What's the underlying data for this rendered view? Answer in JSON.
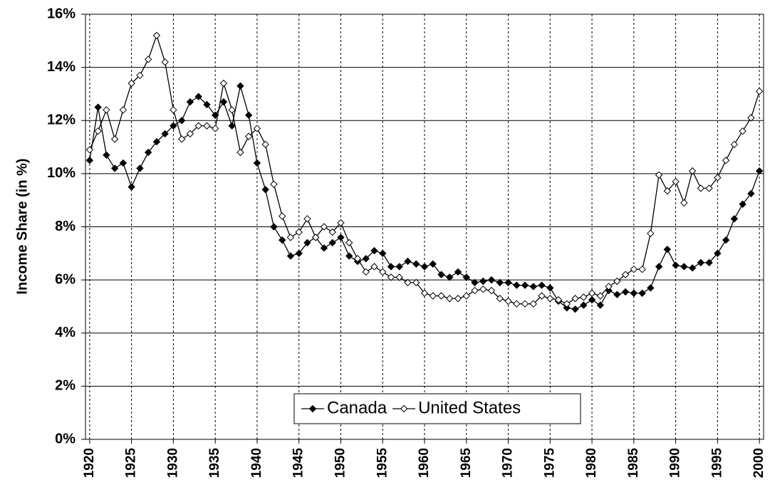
{
  "chart_data": {
    "type": "line",
    "y_label": "Income Share (in %)",
    "x": [
      1920,
      1921,
      1922,
      1923,
      1924,
      1925,
      1926,
      1927,
      1928,
      1929,
      1930,
      1931,
      1932,
      1933,
      1934,
      1935,
      1936,
      1937,
      1938,
      1939,
      1940,
      1941,
      1942,
      1943,
      1944,
      1945,
      1946,
      1947,
      1948,
      1949,
      1950,
      1951,
      1952,
      1953,
      1954,
      1955,
      1956,
      1957,
      1958,
      1959,
      1960,
      1961,
      1962,
      1963,
      1964,
      1965,
      1966,
      1967,
      1968,
      1969,
      1970,
      1971,
      1972,
      1973,
      1974,
      1975,
      1976,
      1977,
      1978,
      1979,
      1980,
      1981,
      1982,
      1983,
      1984,
      1985,
      1986,
      1987,
      1988,
      1989,
      1990,
      1991,
      1992,
      1993,
      1994,
      1995,
      1996,
      1997,
      1998,
      1999,
      2000
    ],
    "series": [
      {
        "name": "Canada",
        "color": "#000000",
        "marker_fill": "#000000",
        "values": [
          10.5,
          12.5,
          10.7,
          10.2,
          10.4,
          9.5,
          10.2,
          10.8,
          11.2,
          11.5,
          11.8,
          12.0,
          12.7,
          12.9,
          12.6,
          12.2,
          12.7,
          11.8,
          13.3,
          12.2,
          10.4,
          9.4,
          8.0,
          7.5,
          6.9,
          7.0,
          7.4,
          7.6,
          7.2,
          7.4,
          7.6,
          6.9,
          6.7,
          6.8,
          7.1,
          7.0,
          6.5,
          6.5,
          6.7,
          6.6,
          6.5,
          6.6,
          6.2,
          6.1,
          6.3,
          6.1,
          5.9,
          5.95,
          6.0,
          5.9,
          5.9,
          5.8,
          5.8,
          5.75,
          5.8,
          5.7,
          5.2,
          4.95,
          4.9,
          5.05,
          5.25,
          5.05,
          5.6,
          5.45,
          5.55,
          5.5,
          5.5,
          5.7,
          6.5,
          7.15,
          6.55,
          6.5,
          6.45,
          6.65,
          6.65,
          7.0,
          7.5,
          8.3,
          8.85,
          9.25,
          10.1
        ]
      },
      {
        "name": "United States",
        "color": "#000000",
        "marker_fill": "#ffffff",
        "values": [
          10.9,
          11.6,
          12.4,
          11.3,
          12.4,
          13.4,
          13.7,
          14.3,
          15.2,
          14.2,
          12.4,
          11.3,
          11.5,
          11.8,
          11.8,
          11.7,
          13.4,
          12.4,
          10.8,
          11.4,
          11.7,
          11.1,
          9.6,
          8.4,
          7.6,
          7.8,
          8.3,
          7.6,
          8.0,
          7.8,
          8.15,
          7.4,
          6.8,
          6.3,
          6.5,
          6.3,
          6.1,
          6.1,
          5.9,
          5.9,
          5.5,
          5.4,
          5.4,
          5.3,
          5.3,
          5.4,
          5.6,
          5.65,
          5.6,
          5.3,
          5.2,
          5.1,
          5.1,
          5.1,
          5.4,
          5.3,
          5.25,
          5.1,
          5.3,
          5.35,
          5.5,
          5.4,
          5.75,
          5.95,
          6.2,
          6.4,
          6.4,
          7.75,
          9.95,
          9.35,
          9.7,
          8.9,
          10.1,
          9.45,
          9.45,
          9.85,
          10.5,
          11.1,
          11.6,
          12.1,
          13.1
        ]
      }
    ],
    "xlim": [
      1919.5,
      2000.5
    ],
    "xticks": [
      1920,
      1925,
      1930,
      1935,
      1940,
      1945,
      1950,
      1955,
      1960,
      1965,
      1970,
      1975,
      1980,
      1985,
      1990,
      1995,
      2000
    ],
    "ylim": [
      0,
      16
    ],
    "yticks": [
      {
        "value": 0,
        "label": "0%"
      },
      {
        "value": 2,
        "label": "2%"
      },
      {
        "value": 4,
        "label": "4%"
      },
      {
        "value": 6,
        "label": "6%"
      },
      {
        "value": 8,
        "label": "8%"
      },
      {
        "value": 10,
        "label": "10%"
      },
      {
        "value": 12,
        "label": "12%"
      },
      {
        "value": 14,
        "label": "14%"
      },
      {
        "value": 16,
        "label": "16%"
      }
    ],
    "grid": true,
    "legend_position": "bottom-center"
  }
}
